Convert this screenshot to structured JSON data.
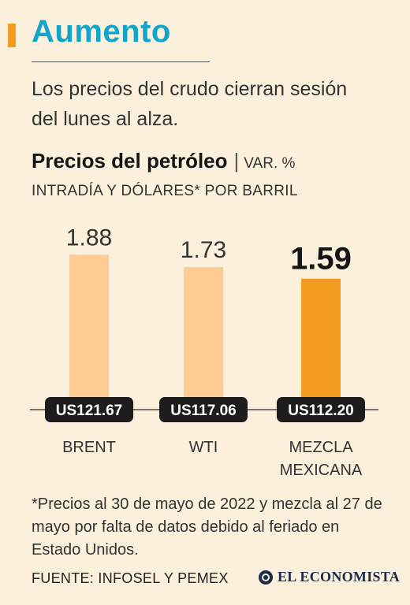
{
  "header": {
    "headline": "Aumento",
    "subtitle": "Los precios del crudo cierran sesión del lunes al alza."
  },
  "chart_title": {
    "main": "Precios del petróleo",
    "units_line1": "VAR. %",
    "units_line2": "INTRADÍA Y DÓLARES* POR BARRIL"
  },
  "chart_data": {
    "type": "bar",
    "title": "Precios del petróleo",
    "subtitle": "VAR. % INTRADÍA Y DÓLARES* POR BARRIL",
    "categories": [
      "BRENT",
      "WTI",
      "MEZCLA MEXICANA"
    ],
    "category_lines": [
      [
        "BRENT"
      ],
      [
        "WTI"
      ],
      [
        "MEZCLA",
        "MEXICANA"
      ]
    ],
    "values": [
      1.88,
      1.73,
      1.59
    ],
    "value_labels": [
      "1.88",
      "1.73",
      "1.59"
    ],
    "prices": [
      "US121.67",
      "US117.06",
      "US112.20"
    ],
    "price_values": [
      121.67,
      117.06,
      112.2
    ],
    "highlight_index": 2,
    "ylim": [
      0,
      1.95
    ],
    "grid": false,
    "colors": {
      "bar": "#fccc94",
      "highlight": "#f39c1f",
      "badge": "#1d1d1d",
      "baseline": "#2a2a2a"
    }
  },
  "footer": {
    "note": "*Precios al 30 de mayo de 2022 y mezcla al 27 de mayo por falta de datos debido al feriado en Estado Unidos.",
    "source": "FUENTE: INFOSEL Y PEMEX",
    "logo_text": "EL ECONOMISTA",
    "logo_icon": "el-economista-logo-icon"
  }
}
